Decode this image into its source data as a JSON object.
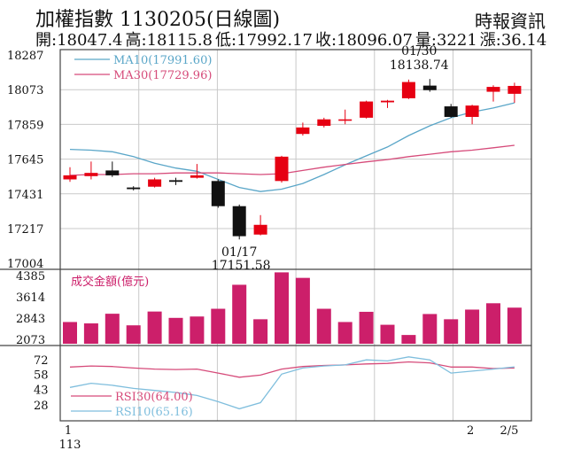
{
  "header": {
    "title": "加權指數 1130205(日線圖)",
    "source": "時報資訊",
    "stats": [
      {
        "label": "開",
        "value": "18047.4"
      },
      {
        "label": "高",
        "value": "18115.8"
      },
      {
        "label": "低",
        "value": "17992.17"
      },
      {
        "label": "收",
        "value": "18096.07"
      },
      {
        "label": "量",
        "value": "3221"
      },
      {
        "label": "漲",
        "value": "36.14"
      }
    ]
  },
  "colors": {
    "up": "#e60012",
    "down": "#111111",
    "ma10": "#5aa6c8",
    "ma30": "#d64b7a",
    "volume": "#cc1f6a",
    "rsi30": "#d64b7a",
    "rsi10": "#7fbedd",
    "grid": "#c9c9c9"
  },
  "chart_data": [
    {
      "type": "candlestick",
      "title": "加權指數 1130205(日線圖)",
      "ylim": [
        17004,
        18287
      ],
      "yticks": [
        "18287",
        "18073",
        "17859",
        "17645",
        "17431",
        "17217",
        "17004"
      ],
      "legend": [
        {
          "label": "MA10(17991.60)",
          "color": "#5aa6c8"
        },
        {
          "label": "MA30(17729.96)",
          "color": "#d64b7a"
        }
      ],
      "annotations": {
        "low_date": "01/17",
        "low_value": "17151.58",
        "high_date": "01/30",
        "high_value": "18138.74"
      },
      "candles": [
        {
          "o": 17520,
          "c": 17545,
          "h": 17595,
          "l": 17505
        },
        {
          "o": 17540,
          "c": 17560,
          "h": 17630,
          "l": 17520
        },
        {
          "o": 17575,
          "c": 17545,
          "h": 17630,
          "l": 17535
        },
        {
          "o": 17470,
          "c": 17460,
          "h": 17478,
          "l": 17452
        },
        {
          "o": 17475,
          "c": 17520,
          "h": 17530,
          "l": 17470
        },
        {
          "o": 17515,
          "c": 17505,
          "h": 17530,
          "l": 17485
        },
        {
          "o": 17530,
          "c": 17545,
          "h": 17615,
          "l": 17525
        },
        {
          "o": 17510,
          "c": 17355,
          "h": 17520,
          "l": 17345
        },
        {
          "o": 17355,
          "c": 17170,
          "h": 17365,
          "l": 17150
        },
        {
          "o": 17180,
          "c": 17240,
          "h": 17300,
          "l": 17175
        },
        {
          "o": 17510,
          "c": 17660,
          "h": 17665,
          "l": 17500
        },
        {
          "o": 17800,
          "c": 17840,
          "h": 17870,
          "l": 17790
        },
        {
          "o": 17850,
          "c": 17890,
          "h": 17900,
          "l": 17840
        },
        {
          "o": 17885,
          "c": 17890,
          "h": 17950,
          "l": 17860
        },
        {
          "o": 17900,
          "c": 18000,
          "h": 18005,
          "l": 17895
        },
        {
          "o": 17995,
          "c": 18005,
          "h": 18010,
          "l": 17960
        },
        {
          "o": 18020,
          "c": 18120,
          "h": 18135,
          "l": 18015
        },
        {
          "o": 18098,
          "c": 18070,
          "h": 18138.74,
          "l": 18060
        },
        {
          "o": 17970,
          "c": 17905,
          "h": 17985,
          "l": 17900
        },
        {
          "o": 17905,
          "c": 17975,
          "h": 17980,
          "l": 17860
        },
        {
          "o": 18060,
          "c": 18090,
          "h": 18100,
          "l": 18000
        },
        {
          "o": 18047.4,
          "c": 18096.07,
          "h": 18115.8,
          "l": 17992.17
        }
      ],
      "ma10": [
        17705,
        17700,
        17690,
        17660,
        17620,
        17590,
        17570,
        17520,
        17470,
        17445,
        17460,
        17495,
        17550,
        17610,
        17665,
        17720,
        17790,
        17850,
        17900,
        17935,
        17960,
        17991.6
      ],
      "ma30": [
        17545,
        17550,
        17550,
        17555,
        17555,
        17560,
        17560,
        17560,
        17555,
        17550,
        17555,
        17575,
        17595,
        17612,
        17628,
        17642,
        17660,
        17675,
        17690,
        17700,
        17715,
        17729.96
      ]
    },
    {
      "type": "bar",
      "title": "成交金額(億元)",
      "ylim": [
        2073,
        4385
      ],
      "yticks": [
        "4385",
        "3614",
        "2843",
        "2073"
      ],
      "values": [
        2700,
        2650,
        3000,
        2580,
        3080,
        2850,
        2900,
        3180,
        4050,
        2800,
        4500,
        4300,
        3180,
        2700,
        3070,
        2600,
        2230,
        2990,
        2800,
        3150,
        3380,
        3221
      ]
    },
    {
      "type": "line",
      "ylim": [
        20,
        80
      ],
      "yticks": [
        "72",
        "58",
        "43",
        "28"
      ],
      "legend": [
        {
          "label": "RSI30(64.00)",
          "color": "#d64b7a"
        },
        {
          "label": "RSI10(65.16)",
          "color": "#7fbedd"
        }
      ],
      "series": [
        {
          "name": "RSI30(64.00)",
          "values": [
            65,
            66,
            65.5,
            64,
            63,
            62.5,
            63,
            59,
            55,
            57,
            63,
            65.5,
            66.5,
            67,
            68,
            68.5,
            70,
            69,
            65,
            65,
            63.5,
            64
          ]
        },
        {
          "name": "RSI10(65.16)",
          "values": [
            45,
            49,
            47,
            44,
            42,
            40,
            37,
            31,
            24,
            30,
            58,
            64,
            66,
            67,
            72,
            71,
            75,
            72,
            59,
            61,
            63,
            65.16
          ]
        }
      ],
      "x_labels": [
        {
          "index": 0,
          "text": "1"
        },
        {
          "index": 19,
          "text": "2"
        },
        {
          "index": 21,
          "text": "2/5"
        }
      ],
      "x_year": "113"
    }
  ]
}
